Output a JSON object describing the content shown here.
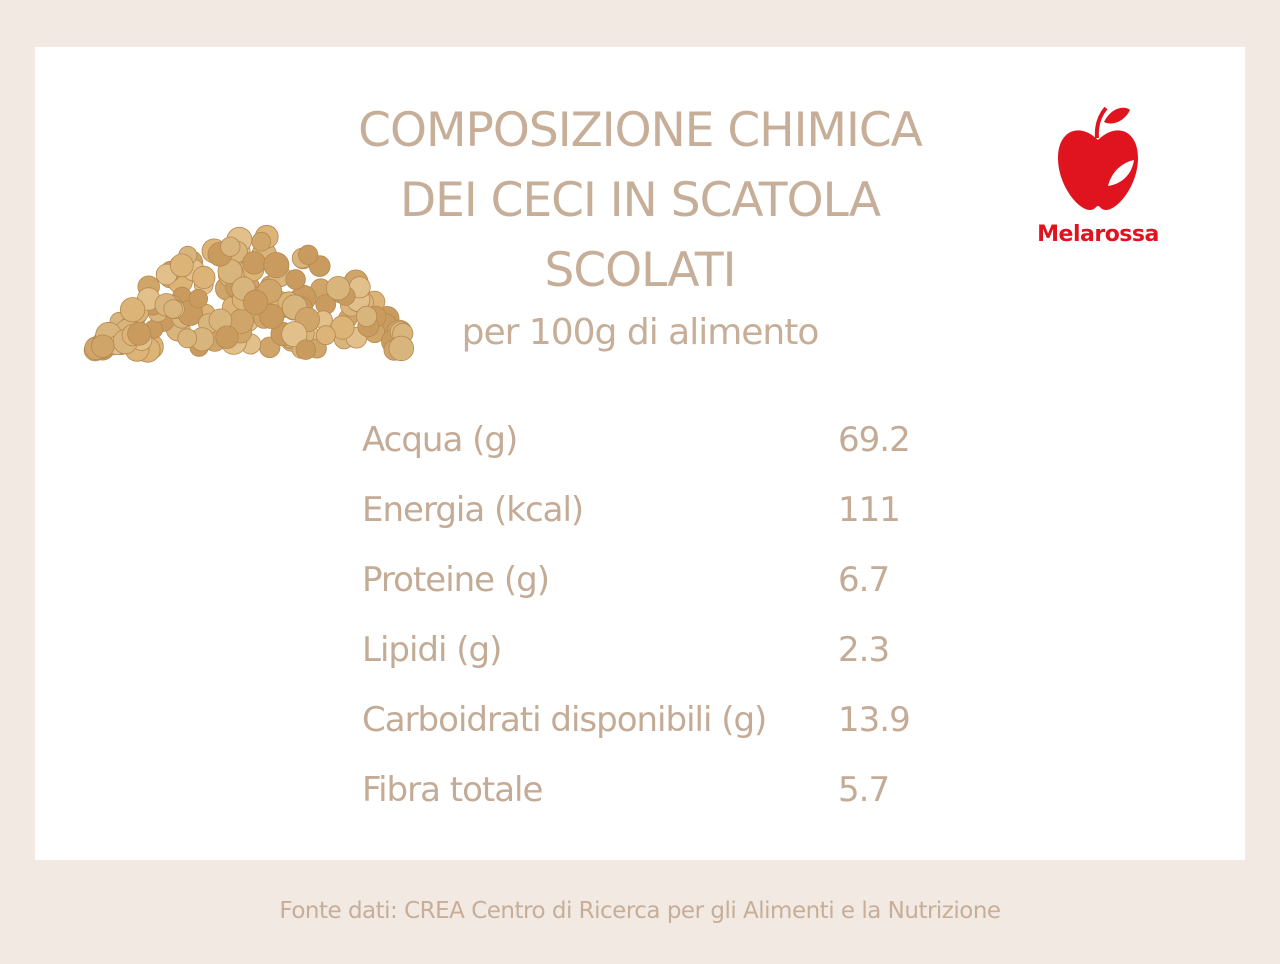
{
  "header": {
    "title_lines": [
      "COMPOSIZIONE CHIMICA",
      "DEI CECI IN SCATOLA",
      "SCOLATI"
    ],
    "subtitle": "per 100g di alimento"
  },
  "logo": {
    "brand": "Melarossa"
  },
  "table": {
    "rows": [
      [
        "Acqua (g)",
        69.2
      ],
      [
        "Energia (kcal)",
        111
      ],
      [
        "Proteine (g)",
        6.7
      ],
      [
        "Lipidi (g)",
        2.3
      ],
      [
        "Carboidrati disponibili (g)",
        13.9
      ],
      [
        "Fibra totale",
        5.7
      ]
    ]
  },
  "footer": {
    "source": "Fonte dati: CREA Centro di Ricerca per gli Alimenti e la Nutrizione"
  }
}
